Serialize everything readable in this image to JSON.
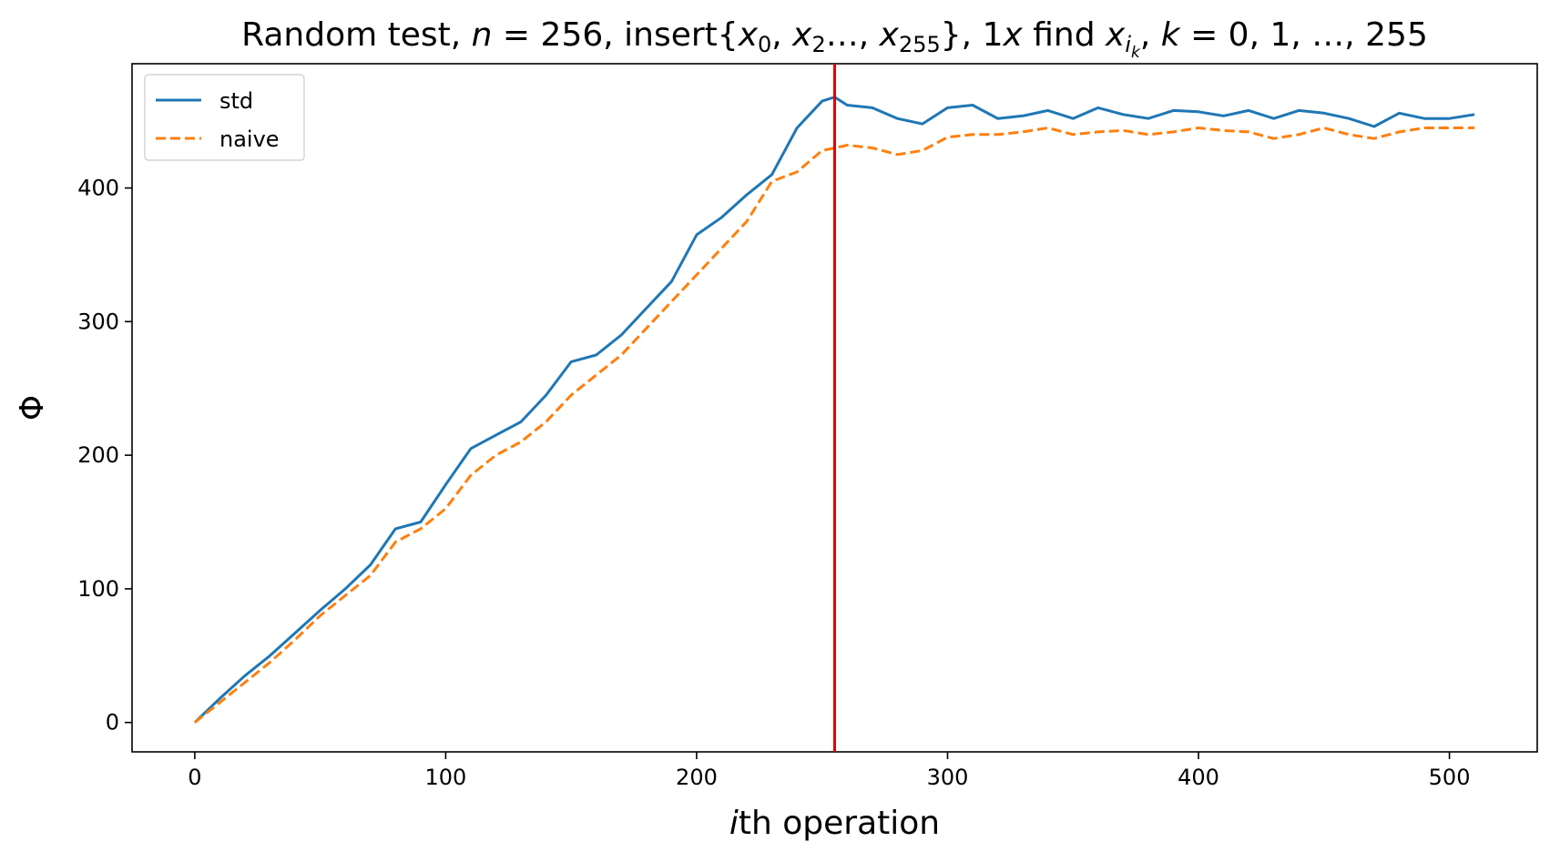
{
  "chart_data": {
    "type": "line",
    "title": {
      "prefix": "Random test, ",
      "n_var": "n",
      "n_value": " = 256, insert{",
      "x0": "x",
      "x0_sub": "0",
      "sep1": ", ",
      "x2": "x",
      "x2_sub": "2",
      "dots1": "…, ",
      "x255": "x",
      "x255_sub": "255",
      "close": "}, 1",
      "find_x": "x",
      "find_text": " find ",
      "xi": "x",
      "xi_sub": "i",
      "xi_subsub": "k",
      "comma_k": ", ",
      "k_var": "k",
      "k_range": " = 0, 1, …, 255"
    },
    "xlabel": {
      "italic": "i",
      "rest": "th operation"
    },
    "ylabel": "Φ",
    "xlim": [
      -25,
      535
    ],
    "ylim": [
      -22,
      493
    ],
    "xticks": [
      0,
      100,
      200,
      300,
      400,
      500
    ],
    "yticks": [
      0,
      100,
      200,
      300,
      400
    ],
    "vline": {
      "x": 255,
      "color": "#e00000"
    },
    "legend_position": "top-left",
    "series": [
      {
        "name": "std",
        "color": "#1f77b4",
        "style": "solid",
        "x": [
          0,
          10,
          20,
          30,
          40,
          50,
          60,
          70,
          80,
          90,
          100,
          110,
          120,
          130,
          140,
          150,
          160,
          170,
          180,
          190,
          200,
          210,
          220,
          230,
          240,
          250,
          255,
          260,
          270,
          280,
          290,
          300,
          310,
          320,
          330,
          340,
          350,
          360,
          370,
          380,
          390,
          400,
          410,
          420,
          430,
          440,
          450,
          460,
          470,
          480,
          490,
          500,
          510
        ],
        "y": [
          0,
          18,
          35,
          50,
          67,
          84,
          100,
          118,
          145,
          150,
          178,
          205,
          215,
          225,
          245,
          270,
          275,
          290,
          310,
          330,
          365,
          378,
          395,
          410,
          445,
          465,
          468,
          462,
          460,
          452,
          448,
          460,
          462,
          452,
          454,
          458,
          452,
          460,
          455,
          452,
          458,
          457,
          454,
          458,
          452,
          458,
          456,
          452,
          446,
          456,
          452,
          452,
          455
        ]
      },
      {
        "name": "naive",
        "color": "#ff7f0e",
        "style": "dashed",
        "x": [
          0,
          10,
          20,
          30,
          40,
          50,
          60,
          70,
          80,
          90,
          100,
          110,
          120,
          130,
          140,
          150,
          160,
          170,
          180,
          190,
          200,
          210,
          220,
          230,
          240,
          250,
          255,
          260,
          270,
          280,
          290,
          300,
          310,
          320,
          330,
          340,
          350,
          360,
          370,
          380,
          390,
          400,
          410,
          420,
          430,
          440,
          450,
          460,
          470,
          480,
          490,
          500,
          510
        ],
        "y": [
          0,
          15,
          30,
          45,
          62,
          80,
          95,
          110,
          135,
          145,
          160,
          185,
          200,
          210,
          225,
          245,
          260,
          275,
          295,
          315,
          335,
          355,
          375,
          405,
          412,
          428,
          430,
          432,
          430,
          425,
          428,
          438,
          440,
          440,
          442,
          445,
          440,
          442,
          443,
          440,
          442,
          445,
          443,
          442,
          437,
          440,
          445,
          440,
          437,
          442,
          445,
          445,
          445
        ]
      }
    ]
  }
}
